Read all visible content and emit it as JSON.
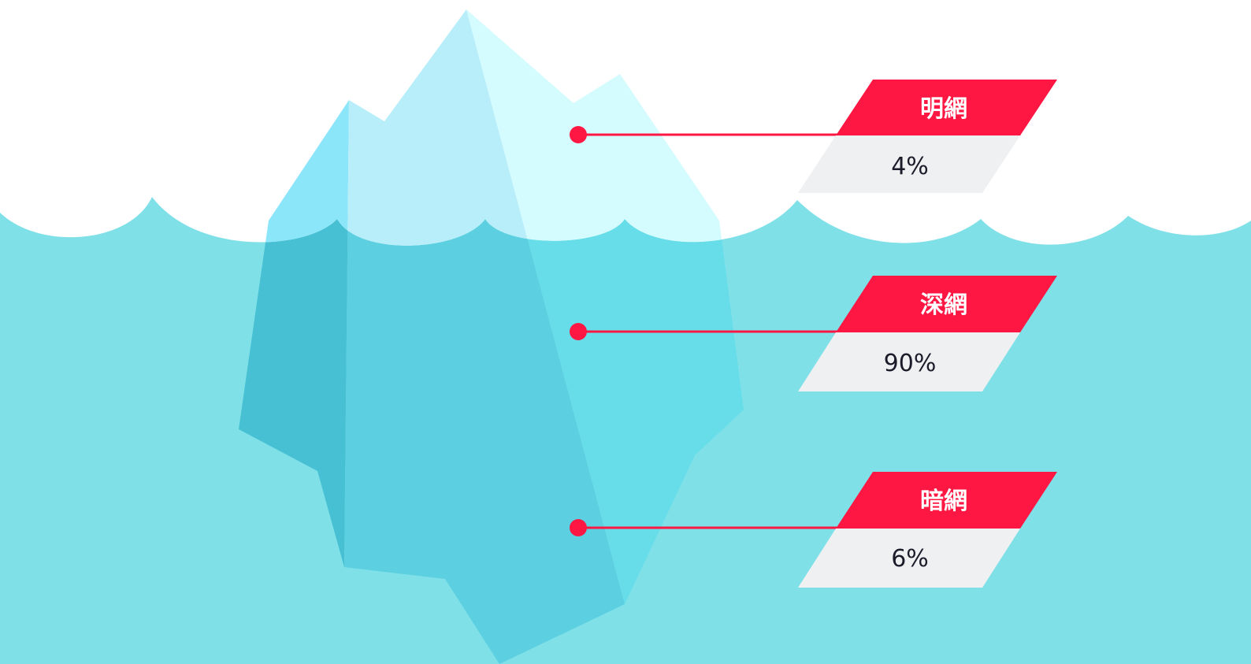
{
  "layers": [
    {
      "label": "明網",
      "value": "4%"
    },
    {
      "label": "深網",
      "value": "90%"
    },
    {
      "label": "暗網",
      "value": "6%"
    }
  ],
  "colors": {
    "accent": "#ff1744",
    "value_box": "#eff0f2",
    "water": "#7fe0e8",
    "sky": "#ffffff"
  }
}
